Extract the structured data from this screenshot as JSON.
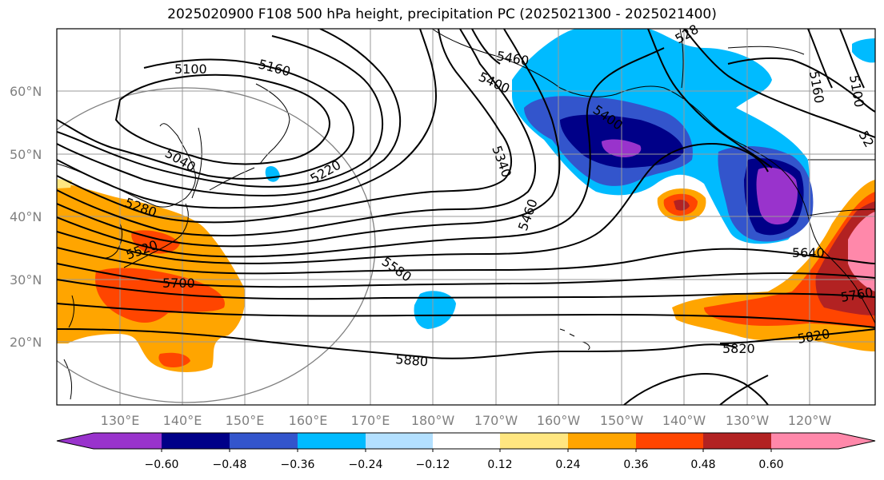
{
  "title": "2025020900 F108 500 hPa height, precipitation PC (2025021300 - 2025021400)",
  "colors": {
    "c0": "#9933cc",
    "c1": "#000088",
    "c2": "#3355cc",
    "c3": "#00bbff",
    "c4": "#b3e0ff",
    "c5": "#ffffff",
    "c6": "#ffe680",
    "c7": "#ffa500",
    "c8": "#ff4500",
    "c9": "#b22222",
    "c10": "#ff88aa"
  },
  "lat_labels": [
    "60°N",
    "50°N",
    "40°N",
    "30°N",
    "20°N"
  ],
  "lon_labels": [
    "130°E",
    "140°E",
    "150°E",
    "160°E",
    "170°E",
    "180°W",
    "170°W",
    "160°W",
    "150°W",
    "140°W",
    "130°W",
    "120°W"
  ],
  "colorbar_labels": [
    "−0.60",
    "−0.48",
    "−0.36",
    "−0.24",
    "−0.12",
    "0.12",
    "0.24",
    "0.36",
    "0.48",
    "0.60"
  ],
  "contour_labels": [
    "5100",
    "5160",
    "5460",
    "5400",
    "5040",
    "5220",
    "5280",
    "5340",
    "5400",
    "5460",
    "5520",
    "5580",
    "5700",
    "5640",
    "5760",
    "5820",
    "5820",
    "5880",
    "5160",
    "5100",
    "52",
    "528"
  ]
}
